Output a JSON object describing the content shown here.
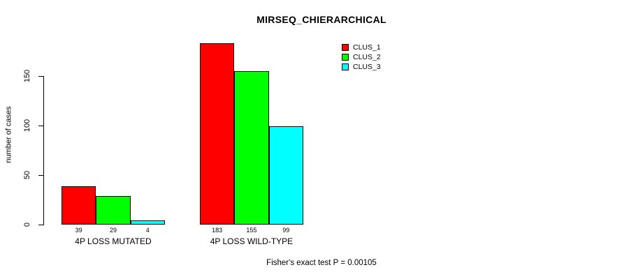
{
  "chart_data": {
    "type": "bar",
    "title": "MIRSEQ_CHIERARCHICAL",
    "ylabel": "number of cases",
    "xlabel": "",
    "categories": [
      "4P LOSS MUTATED",
      "4P LOSS WILD-TYPE"
    ],
    "series": [
      {
        "name": "CLUS_1",
        "color": "#ff0000",
        "values": [
          39,
          183
        ]
      },
      {
        "name": "CLUS_2",
        "color": "#00ff00",
        "values": [
          29,
          155
        ]
      },
      {
        "name": "CLUS_3",
        "color": "#00ffff",
        "values": [
          4,
          99
        ]
      }
    ],
    "yticks": [
      0,
      50,
      100,
      150
    ],
    "ylim": [
      0,
      185
    ],
    "grid": false,
    "value_labels_shown": true,
    "legend": {
      "position": "top-right",
      "entries": [
        "CLUS_1",
        "CLUS_2",
        "CLUS_3"
      ]
    },
    "annotation": "Fisher's exact test P = 0.00105",
    "colors": {
      "bar_border": "#000000",
      "axis": "#000000",
      "background": "#ffffff",
      "text": "#000000"
    }
  }
}
